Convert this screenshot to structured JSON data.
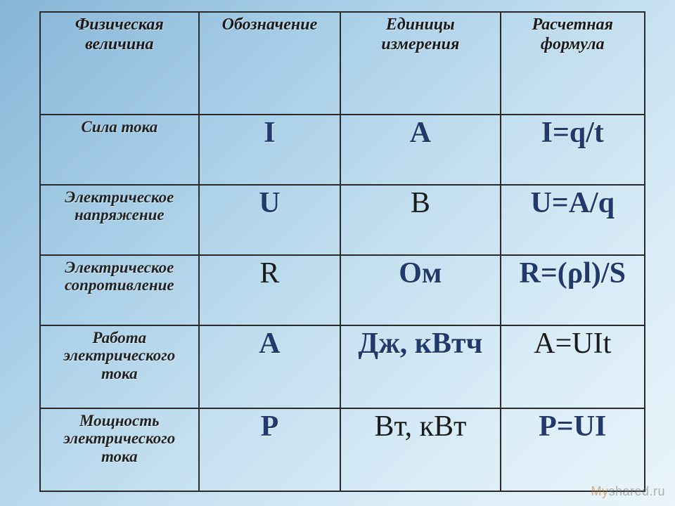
{
  "headers": {
    "c0": "Физическая величина",
    "c1": "Обозначение",
    "c2": "Единицы измерения",
    "c3": "Расчетная формула"
  },
  "rows": [
    {
      "name": "Сила тока",
      "symbol": "I",
      "unit": "А",
      "formula": "I=q/t",
      "name_bold": true,
      "symbol_bold": true,
      "symbol_nav": true,
      "unit_bold": true,
      "unit_nav": true,
      "formula_bold": true,
      "formula_nav": true,
      "tall": false
    },
    {
      "name": "Электрическое напряжение",
      "symbol": "U",
      "unit": "В",
      "formula": "U=A/q",
      "symbol_bold": true,
      "symbol_nav": true,
      "unit_bold": false,
      "unit_nav": false,
      "formula_bold": true,
      "formula_nav": true,
      "tall": false
    },
    {
      "name": "Электрическое сопротивление",
      "symbol": "R",
      "unit": "Ом",
      "formula": "R=(ρl)/S",
      "symbol_bold": false,
      "symbol_nav": false,
      "unit_bold": true,
      "unit_nav": true,
      "formula_bold": true,
      "formula_nav": true,
      "tall": false
    },
    {
      "name": "Работа электрического тока",
      "symbol": "A",
      "unit": "Дж, кВтч",
      "formula": "A=UIt",
      "symbol_bold": true,
      "symbol_nav": true,
      "unit_bold": true,
      "unit_nav": true,
      "formula_bold": false,
      "formula_nav": false,
      "tall": true
    },
    {
      "name": "Мощность электрического тока",
      "symbol": "P",
      "unit": "Вт, кВт",
      "formula": "P=UI",
      "symbol_bold": true,
      "symbol_nav": true,
      "unit_bold": false,
      "unit_nav": false,
      "formula_bold": true,
      "formula_nav": true,
      "tall": true
    }
  ],
  "watermark": {
    "pre": "My",
    "post": "shared.ru"
  },
  "colors": {
    "navy": "#223a6b",
    "text": "#1b1b1b",
    "border": "#2a2a2a"
  }
}
